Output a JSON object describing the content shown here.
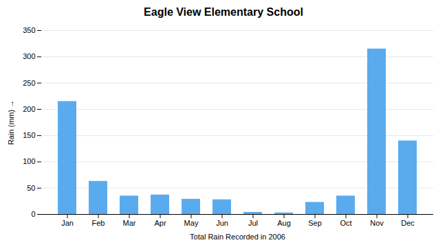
{
  "chart_data": {
    "type": "bar",
    "title": "Eagle View Elementary School",
    "xlabel": "Total Rain Recorded in 2006",
    "ylabel": "Rain (mm)",
    "categories": [
      "Jan",
      "Feb",
      "Mar",
      "Apr",
      "May",
      "Jun",
      "Jul",
      "Aug",
      "Sep",
      "Oct",
      "Nov",
      "Dec"
    ],
    "values": [
      215,
      63,
      35,
      37,
      29,
      28,
      4,
      3,
      23,
      35,
      315,
      140
    ],
    "color": "#5aabee",
    "ylim": [
      0,
      350
    ],
    "yticks": [
      0,
      50,
      100,
      150,
      200,
      250,
      300,
      350
    ],
    "grid": true
  }
}
